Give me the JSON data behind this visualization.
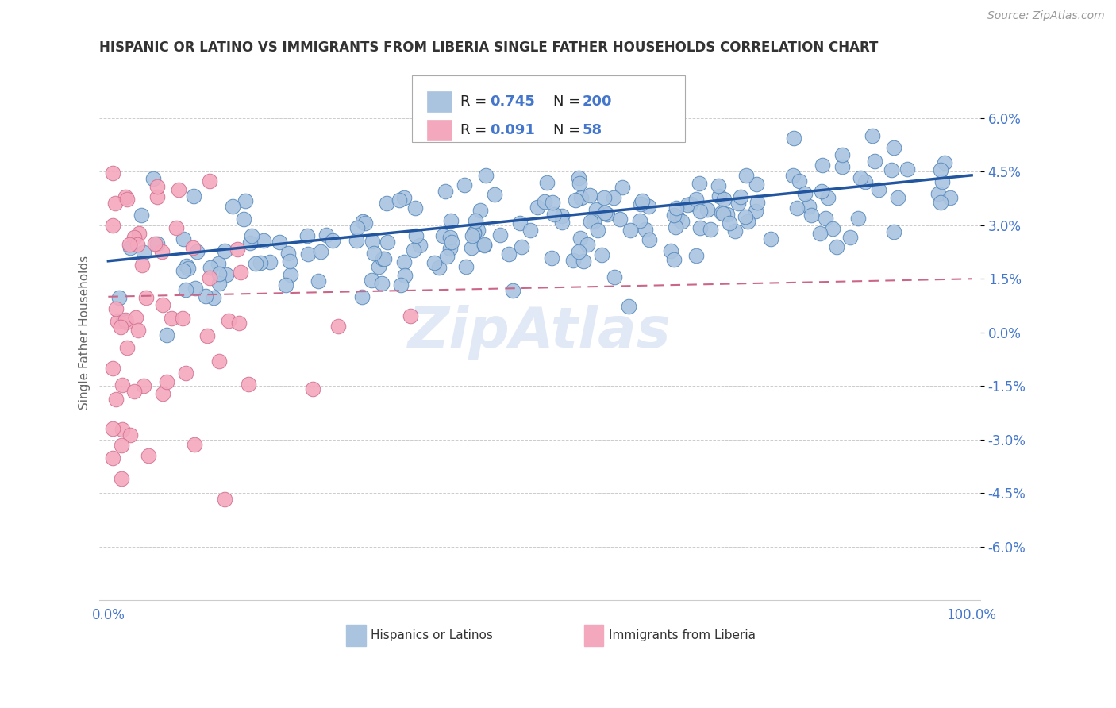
{
  "title": "HISPANIC OR LATINO VS IMMIGRANTS FROM LIBERIA SINGLE FATHER HOUSEHOLDS CORRELATION CHART",
  "source_text": "Source: ZipAtlas.com",
  "ylabel": "Single Father Households",
  "xlim": [
    0.0,
    1.0
  ],
  "ylim": [
    -0.075,
    0.075
  ],
  "yticks": [
    -0.06,
    -0.045,
    -0.03,
    -0.015,
    0.0,
    0.015,
    0.03,
    0.045,
    0.06
  ],
  "ytick_labels": [
    "-6.0%",
    "-4.5%",
    "-3.0%",
    "-1.5%",
    "0.0%",
    "1.5%",
    "3.0%",
    "4.5%",
    "6.0%"
  ],
  "xtick_labels": [
    "0.0%",
    "100.0%"
  ],
  "R_blue": 0.745,
  "N_blue": 200,
  "R_pink": 0.091,
  "N_pink": 58,
  "blue_color": "#aac4e0",
  "blue_edge_color": "#5588bb",
  "blue_line_color": "#2255a0",
  "pink_color": "#f4a8be",
  "pink_edge_color": "#d07090",
  "pink_line_color": "#cc6688",
  "title_color": "#333333",
  "tick_color": "#4477cc",
  "watermark": "ZipAtlas",
  "legend_label_blue": "Hispanics or Latinos",
  "legend_label_pink": "Immigrants from Liberia"
}
